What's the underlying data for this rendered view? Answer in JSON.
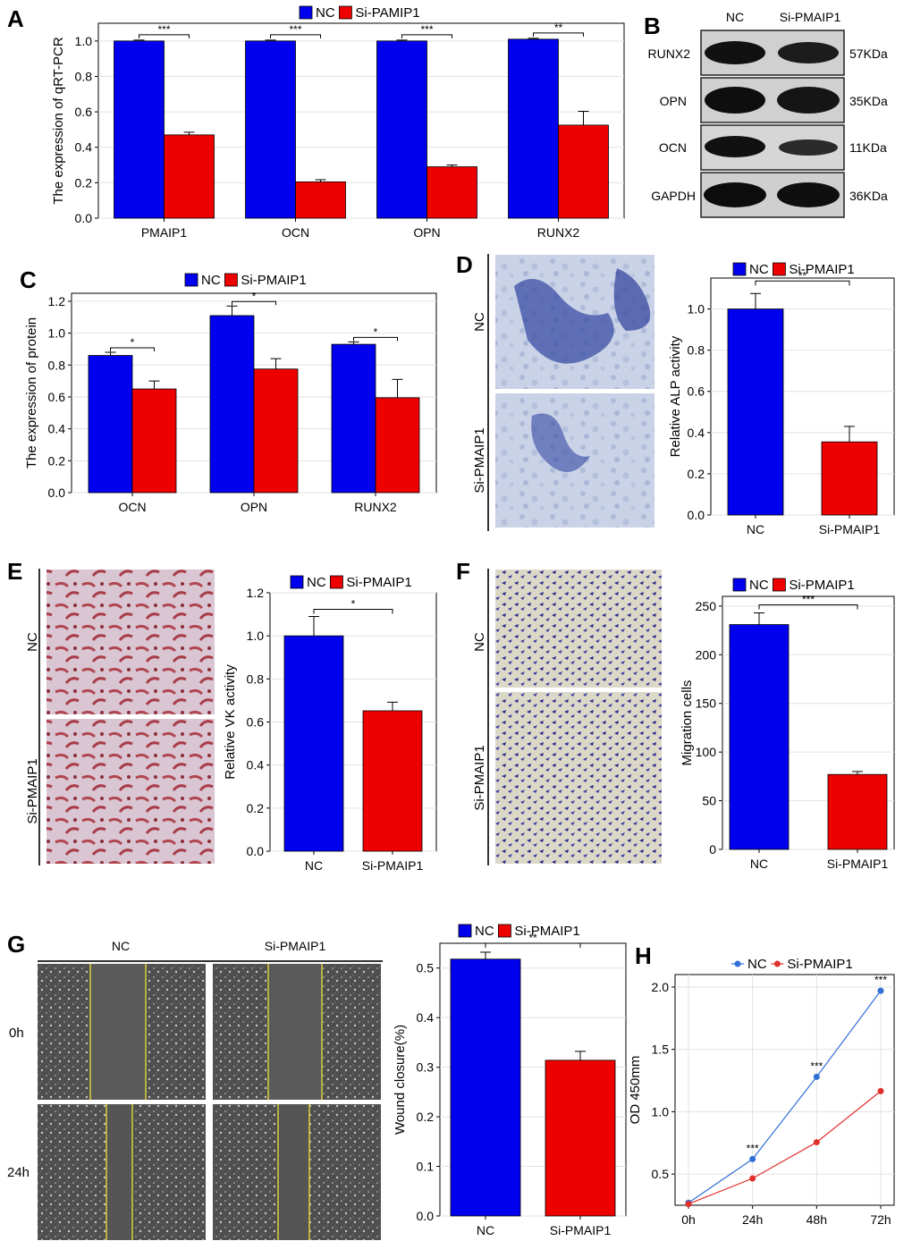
{
  "panel_labels": [
    "A",
    "B",
    "C",
    "D",
    "E",
    "F",
    "G",
    "H"
  ],
  "colors": {
    "nc": "#0000ee",
    "si": "#ee0000",
    "nc_line": "#2f6fd6",
    "si_line": "#e0302c"
  },
  "western_blot": {
    "headers": [
      "NC",
      "Si-PMAIP1"
    ],
    "rows": [
      {
        "protein": "RUNX2",
        "size": "57KDa"
      },
      {
        "protein": "OPN",
        "size": "35KDa"
      },
      {
        "protein": "OCN",
        "size": "11KDa"
      },
      {
        "protein": "GAPDH",
        "size": "36KDa"
      }
    ]
  },
  "images": {
    "d_rows": [
      "NC",
      "Si-PMAIP1"
    ],
    "e_rows": [
      "NC",
      "Si-PMAIP1"
    ],
    "f_rows": [
      "NC",
      "Si-PMAIP1"
    ],
    "g_cols": [
      "NC",
      "Si-PMAIP1"
    ],
    "g_rows": [
      "0h",
      "24h"
    ]
  },
  "chart_data": [
    {
      "id": "A",
      "type": "bar",
      "ylabel": "The expression of qRT-PCR",
      "xlabel": "",
      "ylim": [
        0,
        1.1
      ],
      "yticks": [
        0.0,
        0.2,
        0.4,
        0.6,
        0.8,
        1.0
      ],
      "grid": true,
      "legend": [
        "NC",
        "Si-PAMIP1"
      ],
      "categories": [
        "PMAIP1",
        "OCN",
        "OPN",
        "RUNX2"
      ],
      "series": [
        {
          "name": "NC",
          "values": [
            1.0,
            1.0,
            1.0,
            1.01
          ],
          "errors": [
            0.005,
            0.005,
            0.005,
            0.005
          ]
        },
        {
          "name": "Si-PAMIP1",
          "values": [
            0.47,
            0.205,
            0.29,
            0.525
          ],
          "errors": [
            0.015,
            0.012,
            0.01,
            0.078
          ]
        }
      ],
      "significance": [
        "***",
        "***",
        "***",
        "**"
      ]
    },
    {
      "id": "C",
      "type": "bar",
      "ylabel": "The expression of protein",
      "xlabel": "",
      "ylim": [
        0,
        1.25
      ],
      "yticks": [
        0.0,
        0.2,
        0.4,
        0.6,
        0.8,
        1.0,
        1.2
      ],
      "grid": true,
      "legend": [
        "NC",
        "Si-PMAIP1"
      ],
      "categories": [
        "OCN",
        "OPN",
        "RUNX2"
      ],
      "series": [
        {
          "name": "NC",
          "values": [
            0.86,
            1.11,
            0.93
          ],
          "errors": [
            0.02,
            0.06,
            0.015
          ]
        },
        {
          "name": "Si-PMAIP1",
          "values": [
            0.65,
            0.775,
            0.595
          ],
          "errors": [
            0.05,
            0.065,
            0.115
          ]
        }
      ],
      "significance": [
        "*",
        "*",
        "*"
      ]
    },
    {
      "id": "D",
      "type": "bar",
      "ylabel": "Relative ALP activity",
      "xlabel": "",
      "ylim": [
        0,
        1.15
      ],
      "yticks": [
        0.0,
        0.2,
        0.4,
        0.6,
        0.8,
        1.0
      ],
      "grid": true,
      "legend": [
        "NC",
        "Si-PMAIP1"
      ],
      "categories": [
        "NC",
        "Si-PMAIP1"
      ],
      "values": [
        1.0,
        0.355
      ],
      "errors": [
        0.075,
        0.075
      ],
      "significance": "**"
    },
    {
      "id": "E",
      "type": "bar",
      "ylabel": "Relative VK activity",
      "xlabel": "",
      "ylim": [
        0,
        1.2
      ],
      "yticks": [
        0.0,
        0.2,
        0.4,
        0.6,
        0.8,
        1.0,
        1.2
      ],
      "grid": true,
      "legend": [
        "NC",
        "Si-PMAIP1"
      ],
      "categories": [
        "NC",
        "Si-PMAIP1"
      ],
      "values": [
        1.0,
        0.652
      ],
      "errors": [
        0.09,
        0.04
      ],
      "significance": "*"
    },
    {
      "id": "F",
      "type": "bar",
      "ylabel": "Migration cells",
      "xlabel": "",
      "ylim": [
        0,
        260
      ],
      "yticks": [
        0,
        50,
        100,
        150,
        200,
        250
      ],
      "grid": true,
      "legend": [
        "NC",
        "Si-PMAIP1"
      ],
      "categories": [
        "NC",
        "Si-PMAIP1"
      ],
      "values": [
        231,
        77
      ],
      "errors": [
        12,
        3
      ],
      "significance": "***"
    },
    {
      "id": "G",
      "type": "bar",
      "ylabel": "Wound closure(%)",
      "xlabel": "",
      "ylim": [
        0,
        0.55
      ],
      "yticks": [
        0.0,
        0.1,
        0.2,
        0.3,
        0.4,
        0.5
      ],
      "grid": true,
      "legend": [
        "NC",
        "Si-PMAIP1"
      ],
      "categories": [
        "NC",
        "Si-PMAIP1"
      ],
      "values": [
        0.518,
        0.314
      ],
      "errors": [
        0.014,
        0.018
      ],
      "significance": "**"
    },
    {
      "id": "H",
      "type": "line",
      "ylabel": "OD 450mm",
      "xlabel": "",
      "ylim": [
        0.25,
        2.1
      ],
      "yticks": [
        0.5,
        1.0,
        1.5,
        2.0
      ],
      "grid": true,
      "legend": [
        "NC",
        "Si-PMAIP1"
      ],
      "x": [
        "0h",
        "24h",
        "48h",
        "72h"
      ],
      "series": [
        {
          "name": "NC",
          "values": [
            0.27,
            0.62,
            1.28,
            1.97
          ]
        },
        {
          "name": "Si-PMAIP1",
          "values": [
            0.26,
            0.465,
            0.755,
            1.165
          ]
        }
      ],
      "annotations": [
        "",
        "***",
        "***",
        "***"
      ]
    }
  ]
}
